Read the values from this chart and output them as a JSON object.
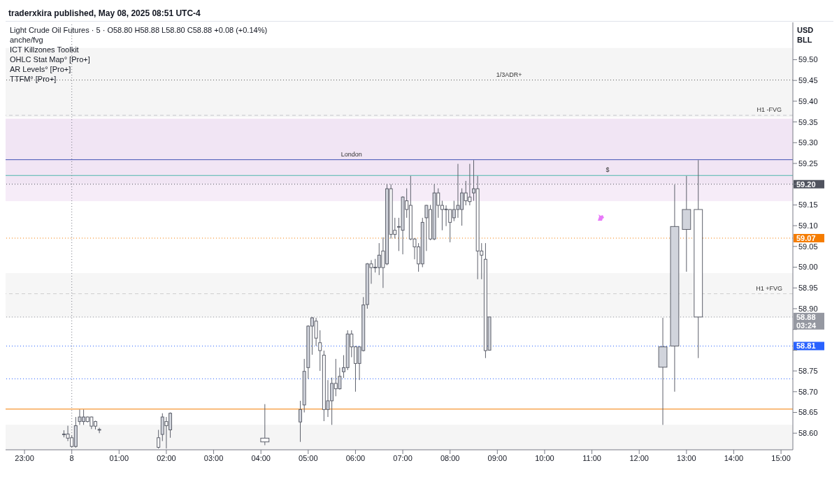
{
  "chart_data": {
    "type": "candlestick",
    "title": "Light Crude Oil Futures · 5 · O58.80 H58.88 L58.80 C58.88 +0.08 (+0.14%)",
    "ylabel": "USD",
    "color": "#5d606b",
    "x": [
      "2025-05-07T23:50",
      "2025-05-07T23:55",
      "2025-05-08T00:00",
      "2025-05-08T00:05",
      "2025-05-08T00:10",
      "2025-05-08T00:15",
      "2025-05-08T00:20",
      "2025-05-08T00:25",
      "2025-05-08T00:30",
      "2025-05-08T00:35",
      "2025-05-08T01:50",
      "2025-05-08T01:55",
      "2025-05-08T02:00",
      "2025-05-08T02:05",
      "2025-05-08T04:05",
      "2025-05-08T04:50",
      "2025-05-08T04:55",
      "2025-05-08T05:00",
      "2025-05-08T05:05",
      "2025-05-08T05:10",
      "2025-05-08T05:15",
      "2025-05-08T05:20",
      "2025-05-08T05:25",
      "2025-05-08T05:30",
      "2025-05-08T05:35",
      "2025-05-08T05:40",
      "2025-05-08T05:45",
      "2025-05-08T05:50",
      "2025-05-08T05:55",
      "2025-05-08T06:00",
      "2025-05-08T06:05",
      "2025-05-08T06:10",
      "2025-05-08T06:15",
      "2025-05-08T06:20",
      "2025-05-08T06:25",
      "2025-05-08T06:30",
      "2025-05-08T06:35",
      "2025-05-08T06:40",
      "2025-05-08T06:45",
      "2025-05-08T06:50",
      "2025-05-08T06:55",
      "2025-05-08T07:00",
      "2025-05-08T07:05",
      "2025-05-08T07:10",
      "2025-05-08T07:15",
      "2025-05-08T07:20",
      "2025-05-08T07:25",
      "2025-05-08T07:30",
      "2025-05-08T07:35",
      "2025-05-08T07:40",
      "2025-05-08T07:45",
      "2025-05-08T07:50",
      "2025-05-08T07:55",
      "2025-05-08T08:00",
      "2025-05-08T08:05",
      "2025-05-08T08:10",
      "2025-05-08T08:15",
      "2025-05-08T08:20",
      "2025-05-08T08:25",
      "2025-05-08T08:30",
      "2025-05-08T08:35",
      "2025-05-08T08:40",
      "2025-05-08T08:45",
      "2025-05-08T08:50",
      "2025-05-08T12:30",
      "2025-05-08T12:45",
      "2025-05-08T13:00",
      "2025-05-08T13:15"
    ],
    "ohlc": [
      [
        58.598,
        58.607,
        58.59,
        58.597
      ],
      [
        58.598,
        58.618,
        58.581,
        58.588
      ],
      [
        58.589,
        58.594,
        58.565,
        58.568
      ],
      [
        58.568,
        58.639,
        58.565,
        58.618
      ],
      [
        58.628,
        58.657,
        58.62,
        58.639
      ],
      [
        58.628,
        58.657,
        58.62,
        58.639
      ],
      [
        58.639,
        58.64,
        58.626,
        58.628
      ],
      [
        58.639,
        58.64,
        58.61,
        58.617
      ],
      [
        58.628,
        58.63,
        58.609,
        58.617
      ],
      [
        58.609,
        58.613,
        58.6,
        58.608
      ],
      [
        58.589,
        58.608,
        58.563,
        58.566
      ],
      [
        58.597,
        58.648,
        58.581,
        58.639
      ],
      [
        58.628,
        58.639,
        58.563,
        58.618
      ],
      [
        58.608,
        58.65,
        58.589,
        58.648
      ],
      [
        58.588,
        58.67,
        58.571,
        58.579
      ],
      [
        58.627,
        58.678,
        58.579,
        58.657
      ],
      [
        58.668,
        58.779,
        58.65,
        58.749
      ],
      [
        58.758,
        58.86,
        58.731,
        58.858
      ],
      [
        58.858,
        58.88,
        58.789,
        58.878
      ],
      [
        58.87,
        58.878,
        58.81,
        58.829
      ],
      [
        58.818,
        58.848,
        58.75,
        58.799
      ],
      [
        58.788,
        58.799,
        58.629,
        58.657
      ],
      [
        58.657,
        58.728,
        58.639,
        58.678
      ],
      [
        58.678,
        58.734,
        58.62,
        58.72
      ],
      [
        58.72,
        58.779,
        58.689,
        58.707
      ],
      [
        58.707,
        58.758,
        58.705,
        58.737
      ],
      [
        58.748,
        58.788,
        58.733,
        58.758
      ],
      [
        58.758,
        58.848,
        58.752,
        58.839
      ],
      [
        58.839,
        58.848,
        58.783,
        58.808
      ],
      [
        58.808,
        58.81,
        58.7,
        58.768
      ],
      [
        58.768,
        58.808,
        58.728,
        58.808
      ],
      [
        58.799,
        58.928,
        58.797,
        58.909
      ],
      [
        58.91,
        59.01,
        58.9,
        59.008
      ],
      [
        59.008,
        59.017,
        58.96,
        58.999
      ],
      [
        58.999,
        59.02,
        58.987,
        59.0
      ],
      [
        58.999,
        59.058,
        58.981,
        59.029
      ],
      [
        59.039,
        59.072,
        58.95,
        58.999
      ],
      [
        59.008,
        59.2,
        59.005,
        59.189
      ],
      [
        59.189,
        59.2,
        59.069,
        59.079
      ],
      [
        59.089,
        59.119,
        59.069,
        59.079
      ],
      [
        59.098,
        59.119,
        59.039,
        59.097
      ],
      [
        59.089,
        59.171,
        59.031,
        59.169
      ],
      [
        59.16,
        59.19,
        59.119,
        59.139
      ],
      [
        59.149,
        59.22,
        59.065,
        59.068
      ],
      [
        59.068,
        59.07,
        59.019,
        59.049
      ],
      [
        59.049,
        59.058,
        58.989,
        59.008
      ],
      [
        59.008,
        59.119,
        59.0,
        59.108
      ],
      [
        59.119,
        59.15,
        59.039,
        59.149
      ],
      [
        59.139,
        59.15,
        59.065,
        59.068
      ],
      [
        59.068,
        59.2,
        59.065,
        59.179
      ],
      [
        59.179,
        59.19,
        59.119,
        59.149
      ],
      [
        59.149,
        59.16,
        59.089,
        59.139
      ],
      [
        59.14,
        59.149,
        59.099,
        59.139
      ],
      [
        59.139,
        59.14,
        59.06,
        59.108
      ],
      [
        59.119,
        59.16,
        59.111,
        59.139
      ],
      [
        59.139,
        59.249,
        59.119,
        59.149
      ],
      [
        59.139,
        59.19,
        59.1,
        59.179
      ],
      [
        59.179,
        59.208,
        59.149,
        59.16
      ],
      [
        59.169,
        59.249,
        59.149,
        59.158
      ],
      [
        59.179,
        59.258,
        59.16,
        59.189
      ],
      [
        59.189,
        59.22,
        58.971,
        59.039
      ],
      [
        59.039,
        59.058,
        58.971,
        59.029
      ],
      [
        59.019,
        59.058,
        58.781,
        58.799
      ],
      [
        58.8,
        58.88,
        58.8,
        58.88
      ],
      [
        58.759,
        58.878,
        58.62,
        58.808
      ],
      [
        58.81,
        59.199,
        58.7,
        59.098
      ],
      [
        59.091,
        59.22,
        58.989,
        59.139
      ],
      [
        59.139,
        59.258,
        58.781,
        58.88
      ]
    ],
    "xlim": [
      "2025-05-07T22:36",
      "2025-05-08T15:15"
    ],
    "xticks": [
      {
        "value": "2025-05-07T23:00",
        "label": "23:00"
      },
      {
        "value": "2025-05-08T00:00",
        "label": "8"
      },
      {
        "value": "2025-05-08T01:00",
        "label": "01:00"
      },
      {
        "value": "2025-05-08T02:00",
        "label": "02:00"
      },
      {
        "value": "2025-05-08T03:00",
        "label": "03:00"
      },
      {
        "value": "2025-05-08T04:00",
        "label": "04:00"
      },
      {
        "value": "2025-05-08T05:00",
        "label": "05:00"
      },
      {
        "value": "2025-05-08T06:00",
        "label": "06:00"
      },
      {
        "value": "2025-05-08T07:00",
        "label": "07:00"
      },
      {
        "value": "2025-05-08T08:00",
        "label": "08:00"
      },
      {
        "value": "2025-05-08T09:00",
        "label": "09:00"
      },
      {
        "value": "2025-05-08T10:00",
        "label": "10:00"
      },
      {
        "value": "2025-05-08T11:00",
        "label": "11:00"
      },
      {
        "value": "2025-05-08T12:00",
        "label": "12:00"
      },
      {
        "value": "2025-05-08T13:00",
        "label": "13:00"
      },
      {
        "value": "2025-05-08T14:00",
        "label": "14:00"
      },
      {
        "value": "2025-05-08T15:00",
        "label": "15:00"
      }
    ],
    "ylim": [
      58.56,
      59.59
    ],
    "yticks": [
      {
        "value": 58.6,
        "label": "58.60"
      },
      58.65,
      {
        "value": 58.7,
        "label": "58.70"
      },
      58.75,
      {
        "value": 58.8,
        "label": null
      },
      {
        "value": 58.85,
        "label": null
      },
      {
        "value": 58.9,
        "label": "58.90"
      },
      58.95,
      {
        "value": 59,
        "label": "59.00"
      },
      59.05,
      {
        "value": 59.1,
        "label": "59.10"
      },
      59.15,
      {
        "value": 59.2,
        "label": null
      },
      59.25,
      {
        "value": 59.3,
        "label": "59.30"
      },
      59.35,
      {
        "value": 59.4,
        "label": "59.40"
      },
      59.45,
      {
        "value": 59.5,
        "label": "59.50"
      }
    ],
    "grid": false,
    "bands": [
      {
        "axis": "y",
        "from": 59.361,
        "to": 59.528,
        "color": "#f5f5f5"
      },
      {
        "axis": "y",
        "from": 59.2,
        "to": 59.358,
        "color": "#f1e5f4"
      },
      {
        "axis": "y",
        "from": 59.159,
        "to": 59.2,
        "color": "#f6ecf8"
      },
      {
        "axis": "y",
        "from": 58.878,
        "to": 58.986,
        "color": "#f6f6f6"
      },
      {
        "axis": "y",
        "from": 58.56,
        "to": 58.62,
        "color": "#f5f5f5"
      }
    ],
    "ref_lines": [
      {
        "axis": "y",
        "value": 59.451,
        "color": "#555555",
        "line_style": "dotted"
      },
      {
        "axis": "y",
        "value": 59.366,
        "color": "#c4c6cc",
        "line_style": "dashed"
      },
      {
        "axis": "y",
        "value": 59.259,
        "color": "#3f51b5",
        "line_style": "solid"
      },
      {
        "axis": "y",
        "value": 59.221,
        "color": "#4db6ac",
        "line_style": "solid"
      },
      {
        "axis": "y",
        "value": 58.936,
        "color": "#cfcfcf",
        "line_style": "dashed"
      },
      {
        "axis": "y",
        "value": 58.731,
        "color": "#2962ff",
        "line_style": "dotted"
      },
      {
        "axis": "y",
        "value": 58.658,
        "color": "#f57c00",
        "line_style": "solid"
      },
      {
        "axis": "x",
        "value": "2025-05-08T00:00",
        "color": "#787b86",
        "line_style": "dotted"
      },
      {
        "axis": "y",
        "value": 59.2,
        "label": "59.20",
        "color": "#50535e",
        "line_style": "dotted"
      },
      {
        "axis": "y",
        "value": 59.07,
        "label": "59.07",
        "color": "#f57c00",
        "line_style": "dotted"
      },
      {
        "axis": "y",
        "value": 58.88,
        "label": "58.88\n03:24",
        "color": "#9598a1",
        "line_style": "dotted"
      },
      {
        "axis": "y",
        "value": 58.81,
        "label": "58.81",
        "color": "#2962ff",
        "line_style": "dotted"
      }
    ],
    "annotations": [
      "traderxkira published, May 08, 2025 08:51 UTC-4",
      "BLL",
      "anche/fvg",
      "ICT Killzones Toolkit",
      "OHLC Stat Map° [Pro+]",
      "AR Levels° [Pro+]",
      "TTFM° [Pro+]",
      {
        "text": "1/3ADR+",
        "x": "2025-05-08T09:15",
        "y": 59.451
      },
      {
        "text": "H1 -FVG",
        "x": "2025-05-08T14:45",
        "y": 59.366
      },
      {
        "text": "London",
        "x": "2025-05-08T05:55",
        "y": 59.259
      },
      {
        "text": "$",
        "x": "2025-05-08T11:20",
        "y": 59.221
      },
      {
        "text": "H1 +FVG",
        "x": "2025-05-08T14:45",
        "y": 58.936
      }
    ]
  }
}
